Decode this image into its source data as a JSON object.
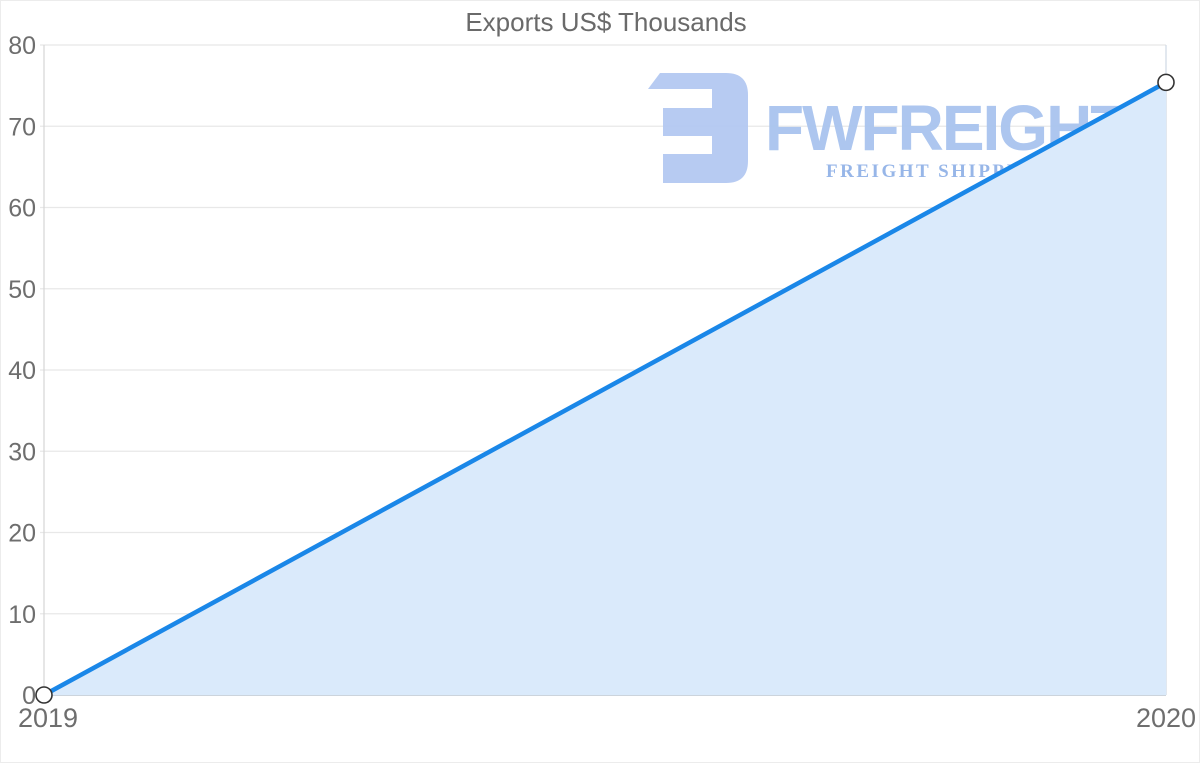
{
  "chart_data": {
    "type": "area",
    "title": "Exports US$ Thousands",
    "x": [
      "2019",
      "2020"
    ],
    "series": [
      {
        "name": "Exports US$ Thousands",
        "values": [
          0,
          75.4
        ]
      }
    ],
    "ylim": [
      0,
      80
    ],
    "ytick_step": 10,
    "ytick_labels": [
      "0",
      "10",
      "20",
      "30",
      "40",
      "50",
      "60",
      "70",
      "80"
    ],
    "xlabel": "",
    "ylabel": "",
    "grid": true,
    "legend": false,
    "marker_style": "open-circle"
  },
  "watermark": {
    "wordmark": "FWFREIGHT",
    "tagline": "FREIGHT SHIPPING"
  },
  "colors": {
    "line": "#1a87e8",
    "area_fill": "#daeafb",
    "marker_fill": "#ffffff",
    "marker_stroke": "#333333",
    "gridline": "#e8e8e8",
    "baseline": "#bcc6d0",
    "left_axis": "#d6d6d6",
    "right_border": "#cfd9e4",
    "title_text": "#6a6a6a",
    "axis_text": "#6e6e6e",
    "watermark_glyph": "#b4c9f2",
    "watermark_wordmark": "#a9c4ef",
    "watermark_tagline": "#92b3e7"
  }
}
